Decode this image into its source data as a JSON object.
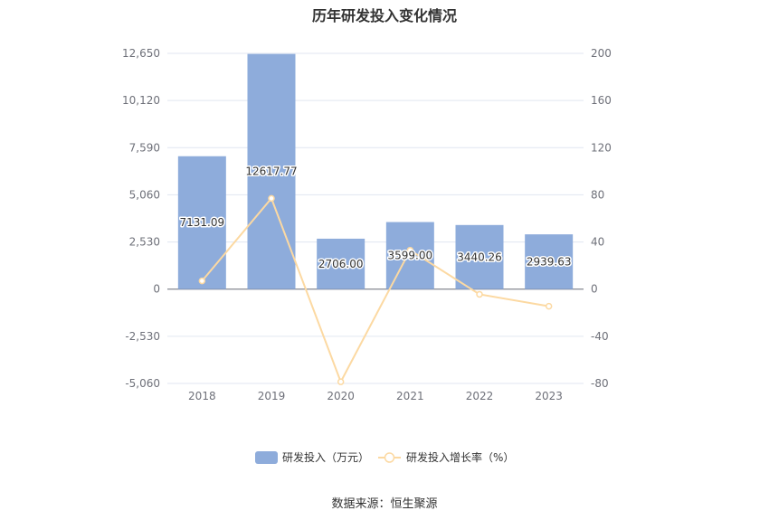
{
  "chart_data": {
    "type": "bar",
    "title": "历年研发投入变化情况",
    "categories": [
      "2018",
      "2019",
      "2020",
      "2021",
      "2022",
      "2023"
    ],
    "series": [
      {
        "name": "研发投入（万元）",
        "type": "bar",
        "axis": "left",
        "values": [
          7131.09,
          12617.77,
          2706.0,
          3599.0,
          3440.26,
          2939.63
        ]
      },
      {
        "name": "研发投入增长率（%）",
        "type": "line",
        "axis": "right",
        "values": [
          7.0,
          77.0,
          -78.6,
          33.0,
          -4.4,
          -14.5
        ]
      }
    ],
    "ylim_left": [
      -5060,
      12650
    ],
    "yticks_left": [
      "12,650",
      "10,120",
      "7,590",
      "5,060",
      "2,530",
      "0",
      "-2,530",
      "-5,060"
    ],
    "ylim_right": [
      -80,
      200
    ],
    "yticks_right": [
      "200",
      "160",
      "120",
      "80",
      "40",
      "0",
      "-40",
      "-80"
    ],
    "grid": true,
    "legend_position": "bottom",
    "colors": {
      "bar": "#8eacdb",
      "line": "#fcd9a2",
      "grid": "#e0e6f1",
      "axis": "#6e7079"
    }
  },
  "source_text": "数据来源：恒生聚源"
}
